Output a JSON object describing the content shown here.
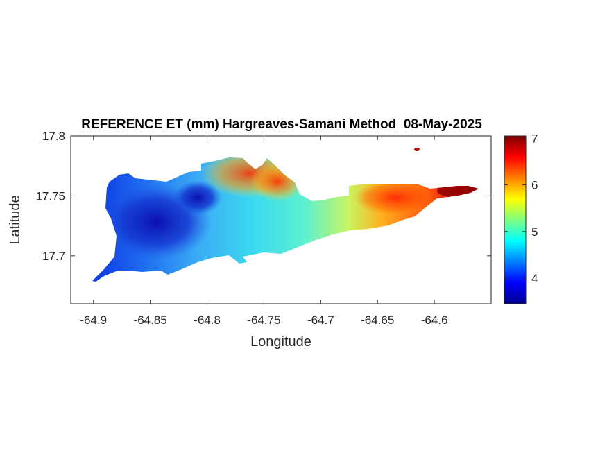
{
  "title": "REFERENCE ET (mm) Hargreaves-Samani Method  08-May-2025",
  "axes": {
    "xlabel": "Longitude",
    "ylabel": "Latitude",
    "xlim": [
      -64.92,
      -64.55
    ],
    "ylim": [
      17.66,
      17.8
    ],
    "xticks": [
      "-64.9",
      "-64.85",
      "-64.8",
      "-64.75",
      "-64.7",
      "-64.65",
      "-64.6"
    ],
    "xtick_values": [
      -64.9,
      -64.85,
      -64.8,
      -64.75,
      -64.7,
      -64.65,
      -64.6
    ],
    "yticks": [
      "17.8",
      "17.75",
      "17.7"
    ],
    "ytick_values": [
      17.8,
      17.75,
      17.7
    ]
  },
  "colorbar": {
    "colormap": "jet",
    "range": [
      3.45,
      7.05
    ],
    "ticks": [
      "7",
      "6",
      "5",
      "4"
    ],
    "tick_values": [
      7,
      6,
      5,
      4
    ]
  },
  "map": {
    "region": "St. Croix island",
    "field": "reference evapotranspiration (mm)",
    "pattern": "low values (~3.5-4) in the west, rising to ~7 at the eastern tip"
  }
}
